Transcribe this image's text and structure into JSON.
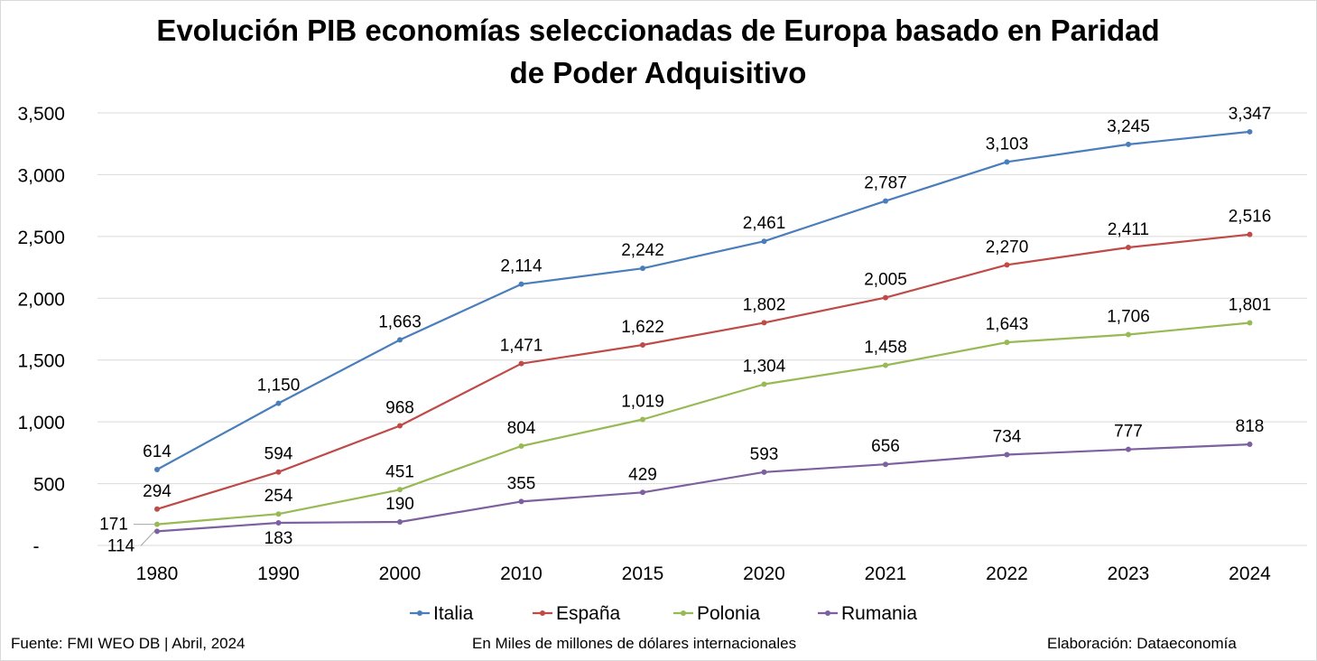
{
  "chart_data": {
    "type": "line",
    "title_lines": [
      "Evolución PIB economías seleccionadas de Europa basado en Paridad",
      "de Poder Adquisitivo"
    ],
    "categories": [
      "1980",
      "1990",
      "2000",
      "2010",
      "2015",
      "2020",
      "2021",
      "2022",
      "2023",
      "2024"
    ],
    "y_ticks": [
      {
        "value": 0,
        "label": "-"
      },
      {
        "value": 500,
        "label": "500"
      },
      {
        "value": 1000,
        "label": "1,000"
      },
      {
        "value": 1500,
        "label": "1,500"
      },
      {
        "value": 2000,
        "label": "2,000"
      },
      {
        "value": 2500,
        "label": "2,500"
      },
      {
        "value": 3000,
        "label": "3,000"
      },
      {
        "value": 3500,
        "label": "3,500"
      }
    ],
    "ylim": [
      0,
      3500
    ],
    "grid": true,
    "legend_position": "bottom",
    "series": [
      {
        "name": "Italia",
        "color": "#4a7ebb",
        "values": [
          614,
          1150,
          1663,
          2114,
          2242,
          2461,
          2787,
          3103,
          3245,
          3347
        ],
        "labels": [
          "614",
          "1,150",
          "1,663",
          "2,114",
          "2,242",
          "2,461",
          "2,787",
          "3,103",
          "3,245",
          "3,347"
        ]
      },
      {
        "name": "España",
        "color": "#be4b48",
        "values": [
          294,
          594,
          968,
          1471,
          1622,
          1802,
          2005,
          2270,
          2411,
          2516
        ],
        "labels": [
          "294",
          "594",
          "968",
          "1,471",
          "1,622",
          "1,802",
          "2,005",
          "2,270",
          "2,411",
          "2,516"
        ]
      },
      {
        "name": "Polonia",
        "color": "#98b954",
        "values": [
          171,
          254,
          451,
          804,
          1019,
          1304,
          1458,
          1643,
          1706,
          1801
        ],
        "labels": [
          "171",
          "254",
          "451",
          "804",
          "1,019",
          "1,304",
          "1,458",
          "1,643",
          "1,706",
          "1,801"
        ]
      },
      {
        "name": "Rumania",
        "color": "#7d60a0",
        "values": [
          114,
          183,
          190,
          355,
          429,
          593,
          656,
          734,
          777,
          818
        ],
        "labels": [
          "114",
          "183",
          "190",
          "355",
          "429",
          "593",
          "656",
          "734",
          "777",
          "818"
        ]
      }
    ]
  },
  "footer": {
    "source": "Fuente: FMI WEO DB | Abril, 2024",
    "units": "En Miles de millones de dólares internacionales",
    "credit": "Elaboración: Dataeconomía"
  }
}
